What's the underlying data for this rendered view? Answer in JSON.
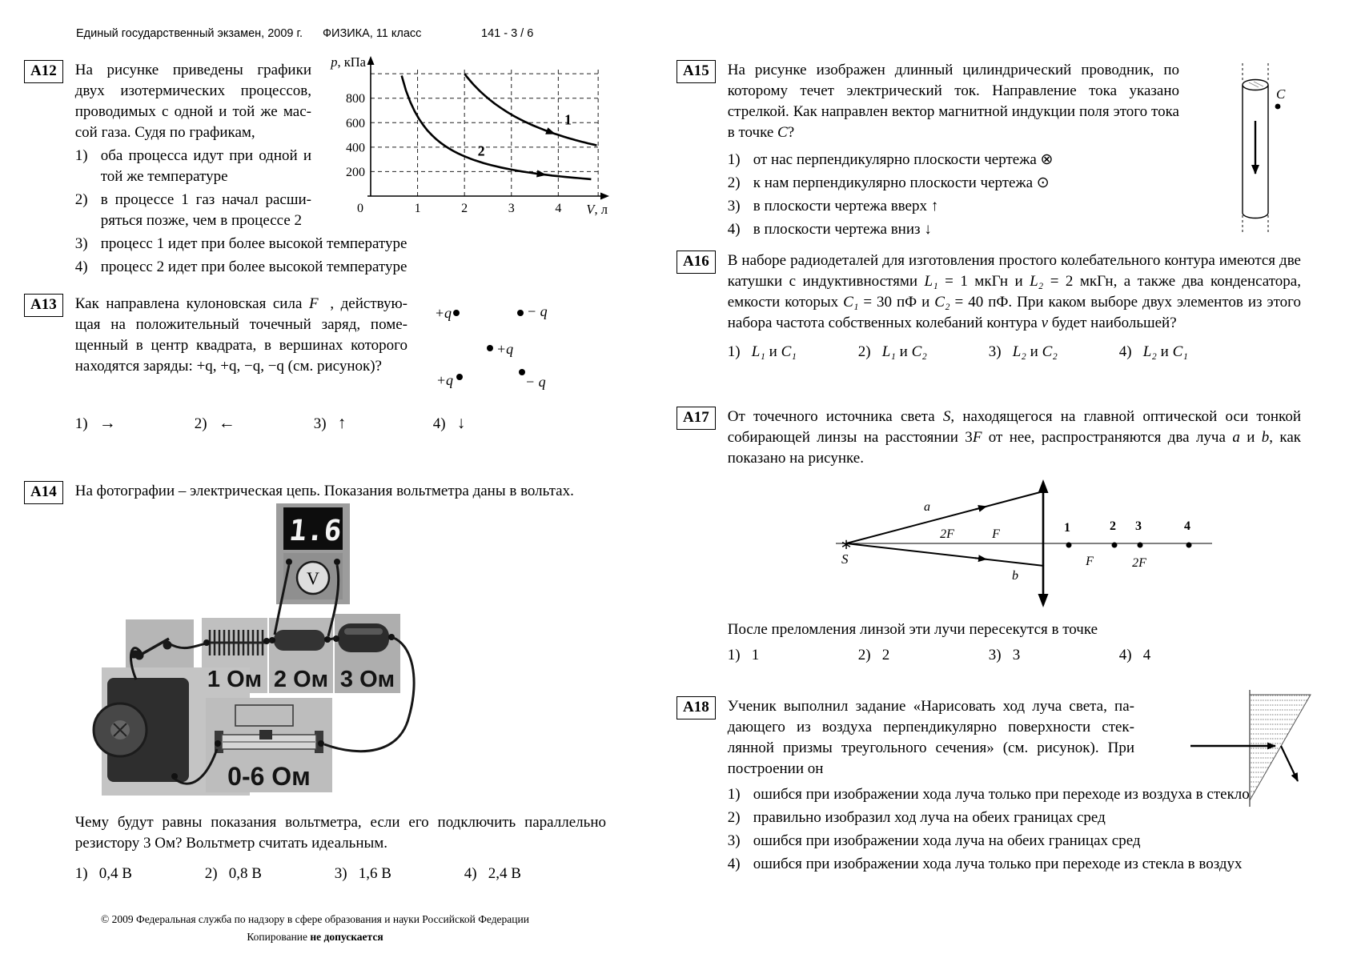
{
  "header": {
    "exam": "Единый государственный экзамен, 2009 г.",
    "subject": "ФИЗИКА, 11 класс",
    "page": "141 - 3 / 6"
  },
  "footer": {
    "line1": "© 2009  Федеральная служба по надзору в сфере образования и науки Российской Федерации",
    "line2a": "Копирование ",
    "line2b": "не допускается"
  },
  "a12": {
    "label": "A12",
    "text": "На рисунке приведены графики двух изотермических процессов, проводимых с одной и той же мас­сой газа. Судя по графикам,",
    "opts": [
      {
        "n": "1)",
        "t": "оба процесса идут при одной и той же температуре"
      },
      {
        "n": "2)",
        "t": "в процессе 1 газ начал расши­ряться позже, чем в процессе 2"
      },
      {
        "n": "3)",
        "t": "процесс 1 идет при более высокой температуре"
      },
      {
        "n": "4)",
        "t": "процесс 2 идет при более высокой температуре"
      }
    ],
    "chart_data": {
      "type": "line",
      "title": "",
      "ylabel_it": "p",
      "ylabel_rest": ", кПа",
      "xlabel_it": "V",
      "xlabel_rest": ", л",
      "origin": "0",
      "xlim": [
        0,
        4.95
      ],
      "ylim": [
        0,
        1060
      ],
      "xticks": [
        1,
        2,
        3,
        4
      ],
      "yticks": [
        200,
        400,
        600,
        800
      ],
      "grid_x": [
        1,
        2,
        3,
        4,
        4.85
      ],
      "grid_y": [
        200,
        400,
        600,
        800,
        1000
      ],
      "grid": true,
      "legend": "labels on curves",
      "series": [
        {
          "name": "1",
          "pv_const": 2000,
          "v_range": [
            2.0,
            4.82
          ],
          "arrow_v": 3.75,
          "label_at": [
            4.13,
            585
          ],
          "points_v": [
            2.0,
            2.5,
            3.0,
            3.5,
            4.0,
            4.5,
            4.82
          ],
          "points_p": [
            1000,
            800,
            667,
            571,
            500,
            444,
            415
          ]
        },
        {
          "name": "2",
          "pv_const": 650,
          "v_range": [
            0.66,
            4.7
          ],
          "arrow_v": 3.55,
          "label_at": [
            2.28,
            330
          ],
          "points_v": [
            0.66,
            1.0,
            1.5,
            2.0,
            3.0,
            4.0,
            4.7
          ],
          "points_p": [
            985,
            650,
            433,
            325,
            217,
            163,
            138
          ]
        }
      ]
    }
  },
  "a13": {
    "label": "A13",
    "t1": "Как направлена кулоновская сила ",
    "f": "F⃗",
    "t2": ", действую­щая на положительный точечный заряд, поме­щенный в центр квадрата, в вершинах которого находятся заряды: +q, +q, −q, −q (см. рисунок)?",
    "charges": {
      "tl": "+q",
      "tr": "− q",
      "c": "+q",
      "bl": "+q",
      "br": "− q"
    },
    "opts": [
      {
        "n": "1)",
        "t": "→"
      },
      {
        "n": "2)",
        "t": "←"
      },
      {
        "n": "3)",
        "t": "↑"
      },
      {
        "n": "4)",
        "t": "↓"
      }
    ]
  },
  "a14": {
    "label": "A14",
    "text1": "На фотографии – электрическая цепь. Показания вольтметра даны в воль­тах.",
    "photo": {
      "display": "1.6",
      "meter": "V",
      "r1": "1 Ом",
      "r2": "2 Ом",
      "r3": "3 Ом",
      "rheo": "0-6 Ом"
    },
    "text2": "Чему будут равны показания вольтметра, если его подключить параллель­но резистору 3 Ом? Вольтметр считать идеальным.",
    "opts": [
      {
        "n": "1)",
        "t": "0,4 В"
      },
      {
        "n": "2)",
        "t": "0,8 В"
      },
      {
        "n": "3)",
        "t": "1,6 В"
      },
      {
        "n": "4)",
        "t": "2,4 В"
      }
    ]
  },
  "a15": {
    "label": "A15",
    "t1": "На рисунке изображен длинный цилиндрический проводник, по которому течет электрический ток. Направление тока ука­зано стрелкой. Как направлен вектор магнитной индукции поля этого тока в точке ",
    "c": "C",
    "t2": "?",
    "point_label": "C",
    "opts": [
      {
        "n": "1)",
        "t": "от нас перпендикулярно плоскости чертежа ⊗"
      },
      {
        "n": "2)",
        "t": "к нам перпендикулярно плоскости чертежа ⊙"
      },
      {
        "n": "3)",
        "t": "в плоскости чертежа вверх ↑"
      },
      {
        "n": "4)",
        "t": "в плоскости чертежа вниз ↓"
      }
    ]
  },
  "a16": {
    "label": "A16",
    "s0": "В наборе радиодеталей для изготовления простого колебательного контура имеются две катушки с индуктивностями ",
    "s1": "L₁",
    "s2": " = 1 мкГн и ",
    "s3": "L₂",
    "s4": " = 2 мкГн, а так­же два конденсатора, емкости которых ",
    "s5": "C₁",
    "s6": " = 30 пФ и ",
    "s7": "C₂",
    "s8": " = 40 пФ. При каком выборе двух элементов из этого набора частота собственных колебаний контура ",
    "s9": "ν",
    "s10": " будет наибольшей?",
    "m": " и ",
    "opts": [
      {
        "n": "1)",
        "a": "L₁",
        "b": "C₁"
      },
      {
        "n": "2)",
        "a": "L₁",
        "b": "C₂"
      },
      {
        "n": "3)",
        "a": "L₂",
        "b": "C₂"
      },
      {
        "n": "4)",
        "a": "L₂",
        "b": "C₁"
      }
    ]
  },
  "a17": {
    "label": "A17",
    "s0": "От точечного источника света ",
    "s1": "S",
    "s2": ", находящегося на главной оптической оси тонкой собирающей линзы на расстоянии 3",
    "s3": "F",
    "s4": " от нее, распространяются два луча ",
    "s5": "a",
    "s6": " и ",
    "s7": "b",
    "s8": ", как показано на рисунке.",
    "fig": {
      "source": "S",
      "ray_a": "a",
      "ray_b": "b",
      "left_2f": "2F",
      "left_f": "F",
      "right_f": "F",
      "right_2f": "2F",
      "p1": "1",
      "p2": "2",
      "p3": "3",
      "p4": "4"
    },
    "text2": "После преломления линзой эти лучи пересекутся в точке",
    "opts": [
      {
        "n": "1)",
        "t": "1"
      },
      {
        "n": "2)",
        "t": "2"
      },
      {
        "n": "3)",
        "t": "3"
      },
      {
        "n": "4)",
        "t": "4"
      }
    ]
  },
  "a18": {
    "label": "A18",
    "text": "Ученик выполнил задание «Нарисовать ход луча света, па­дающего из воздуха перпендикулярно поверхности стек­лянной призмы треугольного сечения» (см. рисунок). При построении он",
    "opts": [
      {
        "n": "1)",
        "t": "ошибся при изображении хода луча только при переходе из воздуха в стекло"
      },
      {
        "n": "2)",
        "t": "правильно изобразил ход луча на обеих границах сред"
      },
      {
        "n": "3)",
        "t": "ошибся при изображении хода луча на обеих границах сред"
      },
      {
        "n": "4)",
        "t": "ошибся при изображении хода луча только при переходе из стекла в воздух"
      }
    ]
  },
  "colors": {
    "ink": "#000000",
    "panel_gray": "#bdbdbd",
    "device_dark": "#2e2e2e"
  }
}
